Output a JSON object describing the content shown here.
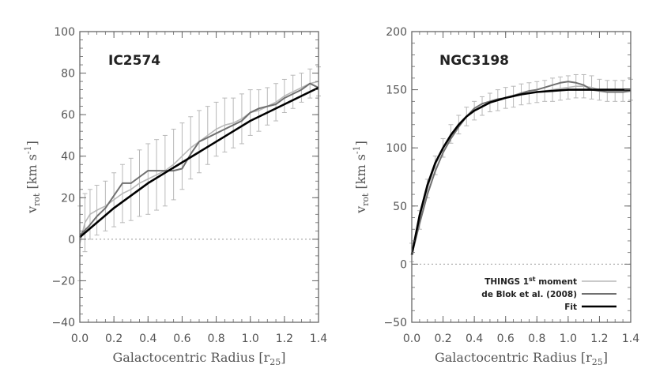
{
  "chart_data": [
    {
      "type": "line",
      "title": "IC2574",
      "xlabel": "Galactocentric Radius [r25]",
      "ylabel": "v_rot [km s^-1]",
      "xlim": [
        0.0,
        1.4
      ],
      "ylim": [
        -40,
        100
      ],
      "xticks": [
        0.0,
        0.2,
        0.4,
        0.6,
        0.8,
        1.0,
        1.2,
        1.4
      ],
      "xtick_labels": [
        "0.0",
        "0.2",
        "0.4",
        "0.6",
        "0.8",
        "1.0",
        "1.2",
        "1.4"
      ],
      "yticks": [
        -40,
        -20,
        0,
        20,
        40,
        60,
        80,
        100
      ],
      "ytick_labels": [
        "−40",
        "−20",
        "0",
        "20",
        "40",
        "60",
        "80",
        "100"
      ],
      "zero_line": true,
      "series": [
        {
          "name": "THINGS 1st moment",
          "color": "#b8b8b8",
          "x": [
            0.0,
            0.03,
            0.06,
            0.1,
            0.15,
            0.2,
            0.25,
            0.3,
            0.35,
            0.4,
            0.45,
            0.5,
            0.55,
            0.6,
            0.65,
            0.7,
            0.75,
            0.8,
            0.85,
            0.9,
            0.95,
            1.0,
            1.05,
            1.1,
            1.15,
            1.2,
            1.25,
            1.3,
            1.35,
            1.4
          ],
          "y": [
            -2,
            8,
            12,
            14,
            16,
            19,
            22,
            24,
            27,
            29,
            31,
            33,
            36,
            40,
            44,
            47,
            50,
            53,
            55,
            56,
            58,
            61,
            62,
            64,
            66,
            69,
            71,
            73,
            75,
            76
          ],
          "err": [
            18,
            14,
            12,
            12,
            12,
            13,
            14,
            15,
            16,
            17,
            17,
            17,
            17,
            16,
            15,
            15,
            14,
            13,
            13,
            12,
            12,
            11,
            10,
            9,
            9,
            8,
            8,
            7,
            7,
            7
          ]
        },
        {
          "name": "de Blok et al. (2008)",
          "color": "#707070",
          "x": [
            0.0,
            0.05,
            0.1,
            0.15,
            0.2,
            0.25,
            0.3,
            0.35,
            0.4,
            0.45,
            0.5,
            0.55,
            0.6,
            0.65,
            0.7,
            0.75,
            0.8,
            0.85,
            0.9,
            0.95,
            1.0,
            1.05,
            1.1,
            1.15,
            1.2,
            1.25,
            1.3,
            1.35,
            1.4
          ],
          "y": [
            2,
            6,
            11,
            15,
            21,
            27,
            27,
            30,
            33,
            33,
            33,
            33,
            34,
            41,
            47,
            49,
            51,
            53,
            55,
            57,
            61,
            63,
            64,
            65,
            68,
            70,
            72,
            75,
            73
          ]
        },
        {
          "name": "Fit",
          "color": "#000000",
          "x": [
            0.0,
            0.1,
            0.2,
            0.3,
            0.4,
            0.5,
            0.6,
            0.7,
            0.8,
            0.9,
            1.0,
            1.1,
            1.2,
            1.3,
            1.4
          ],
          "y": [
            1,
            8,
            15,
            21,
            27,
            32,
            37,
            42,
            47,
            52,
            57,
            61,
            65,
            69,
            73
          ]
        }
      ]
    },
    {
      "type": "line",
      "title": "NGC3198",
      "xlabel": "Galactocentric Radius [r25]",
      "ylabel": "v_rot [km s^-1]",
      "xlim": [
        0.0,
        1.4
      ],
      "ylim": [
        -50,
        200
      ],
      "xticks": [
        0.0,
        0.2,
        0.4,
        0.6,
        0.8,
        1.0,
        1.2,
        1.4
      ],
      "xtick_labels": [
        "0.0",
        "0.2",
        "0.4",
        "0.6",
        "0.8",
        "1.0",
        "1.2",
        "1.4"
      ],
      "yticks": [
        -50,
        0,
        50,
        100,
        150,
        200
      ],
      "ytick_labels": [
        "−50",
        "0",
        "50",
        "100",
        "150",
        "200"
      ],
      "zero_line": true,
      "legend_position": "bottom-right",
      "legend": [
        "THINGS 1st moment",
        "de Blok et al. (2008)",
        "Fit"
      ],
      "series": [
        {
          "name": "THINGS 1st moment",
          "color": "#b8b8b8",
          "x": [
            0.0,
            0.05,
            0.1,
            0.15,
            0.2,
            0.25,
            0.3,
            0.35,
            0.4,
            0.45,
            0.5,
            0.55,
            0.6,
            0.65,
            0.7,
            0.75,
            0.8,
            0.85,
            0.9,
            0.95,
            1.0,
            1.05,
            1.1,
            1.15,
            1.2,
            1.25,
            1.3,
            1.35,
            1.4
          ],
          "y": [
            10,
            38,
            65,
            85,
            100,
            112,
            120,
            127,
            132,
            136,
            139,
            141,
            143,
            144,
            146,
            147,
            148,
            149,
            150,
            151,
            152,
            153,
            153,
            152,
            150,
            149,
            149,
            149,
            150
          ],
          "err": [
            8,
            8,
            8,
            8,
            8,
            8,
            8,
            8,
            8,
            8,
            8,
            9,
            9,
            9,
            9,
            9,
            9,
            9,
            10,
            10,
            10,
            10,
            10,
            10,
            9,
            9,
            9,
            9,
            9
          ]
        },
        {
          "name": "de Blok et al. (2008)",
          "color": "#707070",
          "x": [
            0.0,
            0.05,
            0.1,
            0.15,
            0.2,
            0.25,
            0.3,
            0.35,
            0.4,
            0.45,
            0.5,
            0.55,
            0.6,
            0.65,
            0.7,
            0.75,
            0.8,
            0.85,
            0.9,
            0.95,
            1.0,
            1.05,
            1.1,
            1.15,
            1.2,
            1.25,
            1.3,
            1.35,
            1.4
          ],
          "y": [
            8,
            35,
            60,
            80,
            96,
            108,
            118,
            127,
            134,
            138,
            140,
            142,
            143,
            145,
            147,
            149,
            150,
            152,
            154,
            156,
            157,
            156,
            154,
            150,
            149,
            148,
            148,
            148,
            149
          ]
        },
        {
          "name": "Fit",
          "color": "#000000",
          "x": [
            0.0,
            0.05,
            0.1,
            0.15,
            0.2,
            0.25,
            0.3,
            0.35,
            0.4,
            0.5,
            0.6,
            0.7,
            0.8,
            0.9,
            1.0,
            1.1,
            1.2,
            1.3,
            1.4
          ],
          "y": [
            8,
            42,
            68,
            87,
            100,
            111,
            120,
            127,
            132,
            139,
            143,
            146,
            148,
            149,
            150,
            150,
            150,
            150,
            150
          ]
        }
      ]
    }
  ]
}
